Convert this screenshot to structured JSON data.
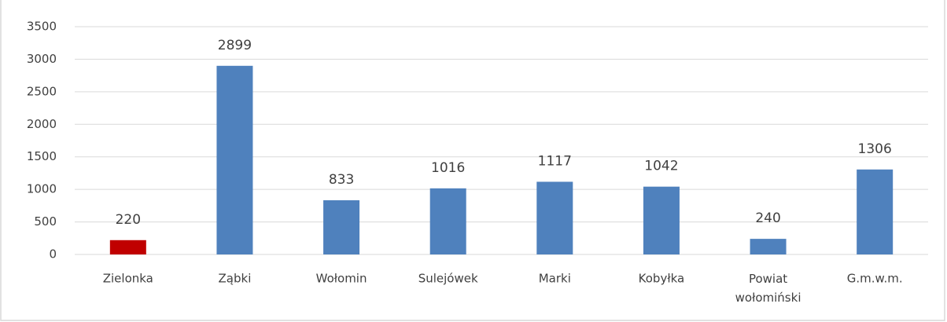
{
  "chart_data": {
    "type": "bar",
    "categories": [
      "Zielonka",
      "Ząbki",
      "Wołomin",
      "Sulejówek",
      "Marki",
      "Kobyłka",
      "Powiat wołomiński",
      "G.m.w.m."
    ],
    "values": [
      220,
      2899,
      833,
      1016,
      1117,
      1042,
      240,
      1306
    ],
    "colors": [
      "#c00000",
      "#4f81bd",
      "#4f81bd",
      "#4f81bd",
      "#4f81bd",
      "#4f81bd",
      "#4f81bd",
      "#4f81bd"
    ],
    "ylim": [
      0,
      3500
    ],
    "yticks": [
      0,
      500,
      1000,
      1500,
      2000,
      2500,
      3000,
      3500
    ],
    "grid": true
  }
}
